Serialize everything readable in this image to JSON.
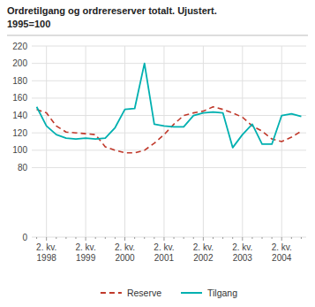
{
  "chart_data": {
    "type": "line",
    "title": "Ordretilgang og ordrereserver totalt. Ujustert.",
    "subtitle": "1995=100",
    "categories": [
      null,
      "2. kv.\n1998",
      null,
      null,
      null,
      "2. kv.\n1999",
      null,
      null,
      null,
      "2. kv.\n2000",
      null,
      null,
      null,
      "2. kv.\n2001",
      null,
      null,
      null,
      "2. kv.\n2002",
      null,
      null,
      null,
      "2. kv.\n2003",
      null,
      null,
      null,
      "2. kv.\n2004",
      null,
      null
    ],
    "series": [
      {
        "name": "Reserve",
        "color": "#c0392b",
        "line_style": "dashed",
        "values": [
          147,
          143,
          128,
          121,
          120,
          119,
          118,
          104,
          100,
          97,
          97,
          100,
          108,
          118,
          130,
          140,
          143,
          145,
          150,
          147,
          143,
          138,
          128,
          122,
          113,
          110,
          115,
          122
        ]
      },
      {
        "name": "Tilgang",
        "color": "#00b0b0",
        "line_style": "solid",
        "values": [
          150,
          128,
          118,
          114,
          113,
          114,
          113,
          114,
          126,
          147,
          148,
          200,
          130,
          128,
          127,
          127,
          140,
          143,
          144,
          143,
          103,
          118,
          130,
          107,
          107,
          140,
          142,
          139
        ]
      }
    ],
    "ylim": [
      0,
      220
    ],
    "yticks": [
      0,
      80,
      100,
      120,
      140,
      160,
      180,
      200,
      220
    ],
    "grid": true,
    "legend": "bottom"
  }
}
